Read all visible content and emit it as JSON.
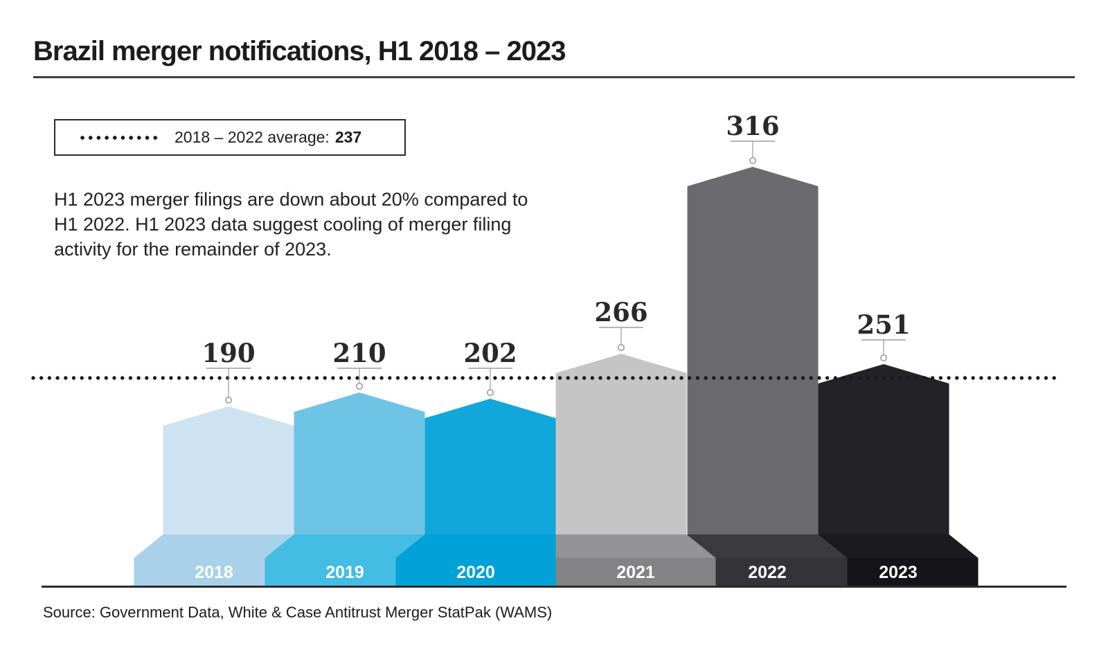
{
  "page": {
    "source": "Source: Government Data, White & Case Antitrust Merger StatPak (WAMS)"
  },
  "legend": {
    "swatch": "dotted-line",
    "label": "2018 – 2022 average:",
    "value": "237"
  },
  "annotation": {
    "text": "H1 2023 merger filings are down about 20% compared to\nH1 2022. H1 2023 data suggest cooling of merger filing\nactivity for the remainder of 2023."
  },
  "chart_data": {
    "type": "bar",
    "title": "Brazil merger notifications, H1 2018 – 2023",
    "categories": [
      "2018",
      "2019",
      "2020",
      "2021",
      "2022",
      "2023"
    ],
    "values": [
      190,
      210,
      202,
      266,
      316,
      251
    ],
    "series": [
      {
        "name": "Brazil merger notifications (H1)",
        "values": [
          190,
          210,
          202,
          266,
          316,
          251
        ]
      }
    ],
    "average_line": {
      "label": "2018 – 2022 average:",
      "value": 237,
      "style": "dotted",
      "color": "#1a1a1a"
    },
    "value_labels": [
      "190",
      "210",
      "202",
      "266",
      "316",
      "251"
    ],
    "axes": "none",
    "grid": false,
    "legend_position": "top-left",
    "style": "stylized pencil-tower bars with peaked tops and flared podium bases, heights not to linear scale",
    "bars": [
      {
        "year": "2018",
        "value": 190,
        "column_color": "#cee3f2",
        "podium_bevel_color": "#a9d2ea",
        "podium_base_color": "#a9d2ea"
      },
      {
        "year": "2019",
        "value": 210,
        "column_color": "#6ec4e4",
        "podium_bevel_color": "#45bce3",
        "podium_base_color": "#45bce3"
      },
      {
        "year": "2020",
        "value": 202,
        "column_color": "#12a7db",
        "podium_bevel_color": "#00a2d8",
        "podium_base_color": "#00a2d8"
      },
      {
        "year": "2021",
        "value": 266,
        "column_color": "#c6c5c6",
        "podium_bevel_color": "#949395",
        "podium_base_color": "#838285"
      },
      {
        "year": "2022",
        "value": 316,
        "column_color": "#6b6a6e",
        "podium_bevel_color": "#3b3a3d",
        "podium_base_color": "#343338"
      },
      {
        "year": "2023",
        "value": 251,
        "column_color": "#232226",
        "podium_bevel_color": "#1b1a1e",
        "podium_base_color": "#151418"
      }
    ],
    "text_colors": {
      "value_label": "#29282c",
      "year_label": "#ffffff"
    }
  }
}
